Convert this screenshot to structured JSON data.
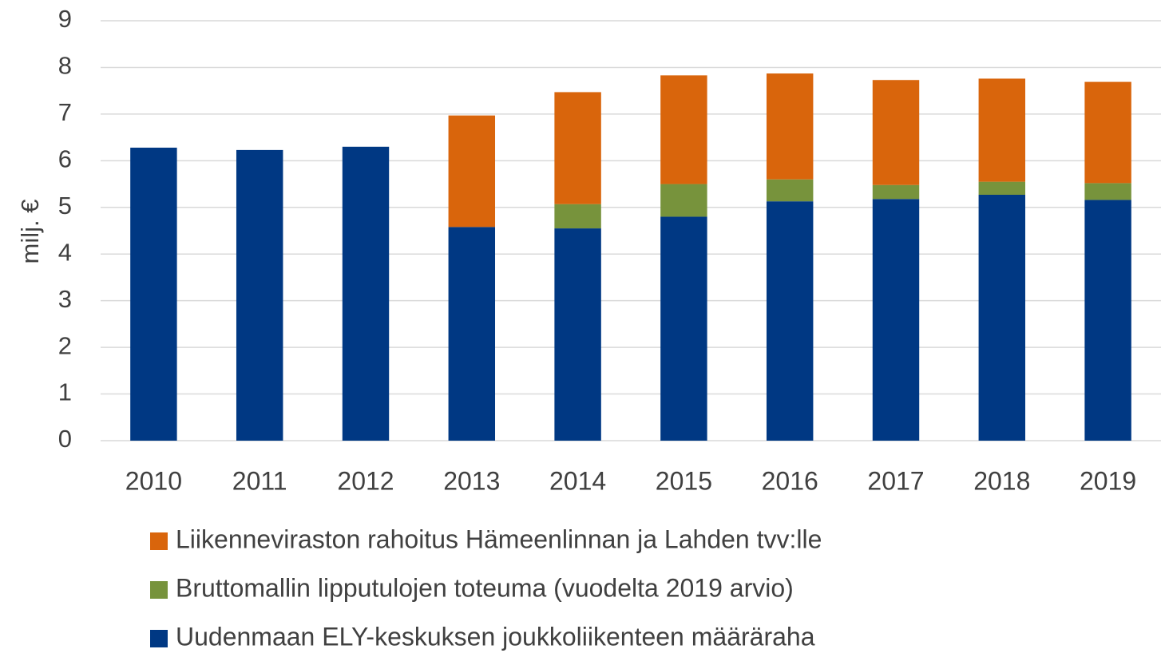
{
  "chart_data": {
    "type": "stacked_bar",
    "y_label": "milj. €",
    "categories": [
      "2010",
      "2011",
      "2012",
      "2013",
      "2014",
      "2015",
      "2016",
      "2017",
      "2018",
      "2019"
    ],
    "series": [
      {
        "name": "Uudenmaan ELY-keskuksen joukkoliikenteen määräraha",
        "color": "#003883",
        "values": [
          6.28,
          6.23,
          6.3,
          4.58,
          4.55,
          4.8,
          5.13,
          5.18,
          5.27,
          5.16
        ]
      },
      {
        "name": "Bruttomallin lipputulojen toteuma (vuodelta 2019 arvio)",
        "color": "#77933c",
        "values": [
          0,
          0,
          0,
          0,
          0.52,
          0.7,
          0.47,
          0.3,
          0.28,
          0.36
        ]
      },
      {
        "name": "Liikenneviraston rahoitus Hämeenlinnan ja Lahden tvv:lle",
        "color": "#d9650c",
        "values": [
          0,
          0,
          0,
          2.39,
          2.4,
          2.33,
          2.27,
          2.25,
          2.21,
          2.17
        ]
      }
    ],
    "ylim": [
      0,
      9
    ],
    "yticks": [
      0,
      1,
      2,
      3,
      4,
      5,
      6,
      7,
      8,
      9
    ],
    "grid": true
  }
}
